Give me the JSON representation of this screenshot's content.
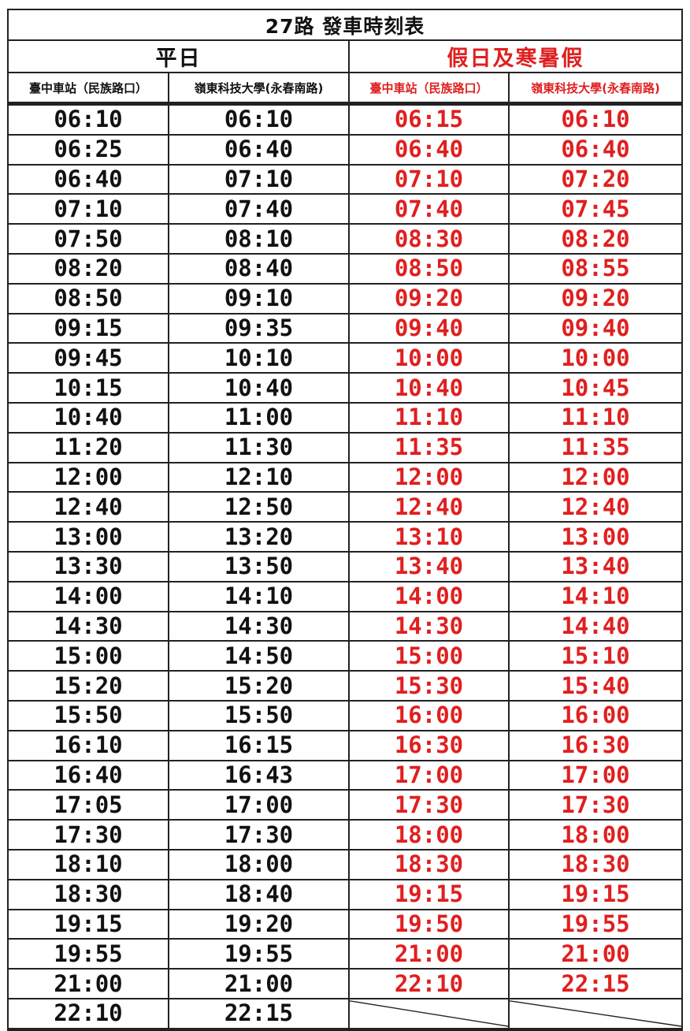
{
  "title": "27路  發車時刻表",
  "groups": {
    "weekday": "平日",
    "holiday": "假日及寒暑假"
  },
  "stops": {
    "weekday_from_taichung": "臺中車站（民族路口）",
    "weekday_from_lingtung": "嶺東科技大學(永春南路)",
    "holiday_from_taichung": "臺中車站（民族路口）",
    "holiday_from_lingtung": "嶺東科技大學(永春南路)"
  },
  "colors": {
    "weekday_text": "#111111",
    "holiday_text": "#e01f1f",
    "border": "#222222"
  },
  "rows": [
    {
      "wk_a": "06:10",
      "wk_b": "06:10",
      "hd_a": "06:15",
      "hd_b": "06:10"
    },
    {
      "wk_a": "06:25",
      "wk_b": "06:40",
      "hd_a": "06:40",
      "hd_b": "06:40"
    },
    {
      "wk_a": "06:40",
      "wk_b": "07:10",
      "hd_a": "07:10",
      "hd_b": "07:20"
    },
    {
      "wk_a": "07:10",
      "wk_b": "07:40",
      "hd_a": "07:40",
      "hd_b": "07:45"
    },
    {
      "wk_a": "07:50",
      "wk_b": "08:10",
      "hd_a": "08:30",
      "hd_b": "08:20"
    },
    {
      "wk_a": "08:20",
      "wk_b": "08:40",
      "hd_a": "08:50",
      "hd_b": "08:55"
    },
    {
      "wk_a": "08:50",
      "wk_b": "09:10",
      "hd_a": "09:20",
      "hd_b": "09:20"
    },
    {
      "wk_a": "09:15",
      "wk_b": "09:35",
      "hd_a": "09:40",
      "hd_b": "09:40"
    },
    {
      "wk_a": "09:45",
      "wk_b": "10:10",
      "hd_a": "10:00",
      "hd_b": "10:00"
    },
    {
      "wk_a": "10:15",
      "wk_b": "10:40",
      "hd_a": "10:40",
      "hd_b": "10:45"
    },
    {
      "wk_a": "10:40",
      "wk_b": "11:00",
      "hd_a": "11:10",
      "hd_b": "11:10"
    },
    {
      "wk_a": "11:20",
      "wk_b": "11:30",
      "hd_a": "11:35",
      "hd_b": "11:35"
    },
    {
      "wk_a": "12:00",
      "wk_b": "12:10",
      "hd_a": "12:00",
      "hd_b": "12:00"
    },
    {
      "wk_a": "12:40",
      "wk_b": "12:50",
      "hd_a": "12:40",
      "hd_b": "12:40"
    },
    {
      "wk_a": "13:00",
      "wk_b": "13:20",
      "hd_a": "13:10",
      "hd_b": "13:00"
    },
    {
      "wk_a": "13:30",
      "wk_b": "13:50",
      "hd_a": "13:40",
      "hd_b": "13:40"
    },
    {
      "wk_a": "14:00",
      "wk_b": "14:10",
      "hd_a": "14:00",
      "hd_b": "14:10"
    },
    {
      "wk_a": "14:30",
      "wk_b": "14:30",
      "hd_a": "14:30",
      "hd_b": "14:40"
    },
    {
      "wk_a": "15:00",
      "wk_b": "14:50",
      "hd_a": "15:00",
      "hd_b": "15:10"
    },
    {
      "wk_a": "15:20",
      "wk_b": "15:20",
      "hd_a": "15:30",
      "hd_b": "15:40"
    },
    {
      "wk_a": "15:50",
      "wk_b": "15:50",
      "hd_a": "16:00",
      "hd_b": "16:00"
    },
    {
      "wk_a": "16:10",
      "wk_b": "16:15",
      "hd_a": "16:30",
      "hd_b": "16:30"
    },
    {
      "wk_a": "16:40",
      "wk_b": "16:43",
      "hd_a": "17:00",
      "hd_b": "17:00"
    },
    {
      "wk_a": "17:05",
      "wk_b": "17:00",
      "hd_a": "17:30",
      "hd_b": "17:30"
    },
    {
      "wk_a": "17:30",
      "wk_b": "17:30",
      "hd_a": "18:00",
      "hd_b": "18:00"
    },
    {
      "wk_a": "18:10",
      "wk_b": "18:00",
      "hd_a": "18:30",
      "hd_b": "18:30"
    },
    {
      "wk_a": "18:30",
      "wk_b": "18:40",
      "hd_a": "19:15",
      "hd_b": "19:15"
    },
    {
      "wk_a": "19:15",
      "wk_b": "19:20",
      "hd_a": "19:50",
      "hd_b": "19:55"
    },
    {
      "wk_a": "19:55",
      "wk_b": "19:55",
      "hd_a": "21:00",
      "hd_b": "21:00"
    },
    {
      "wk_a": "21:00",
      "wk_b": "21:00",
      "hd_a": "22:10",
      "hd_b": "22:15"
    },
    {
      "wk_a": "22:10",
      "wk_b": "22:15",
      "hd_a": "",
      "hd_b": ""
    }
  ]
}
